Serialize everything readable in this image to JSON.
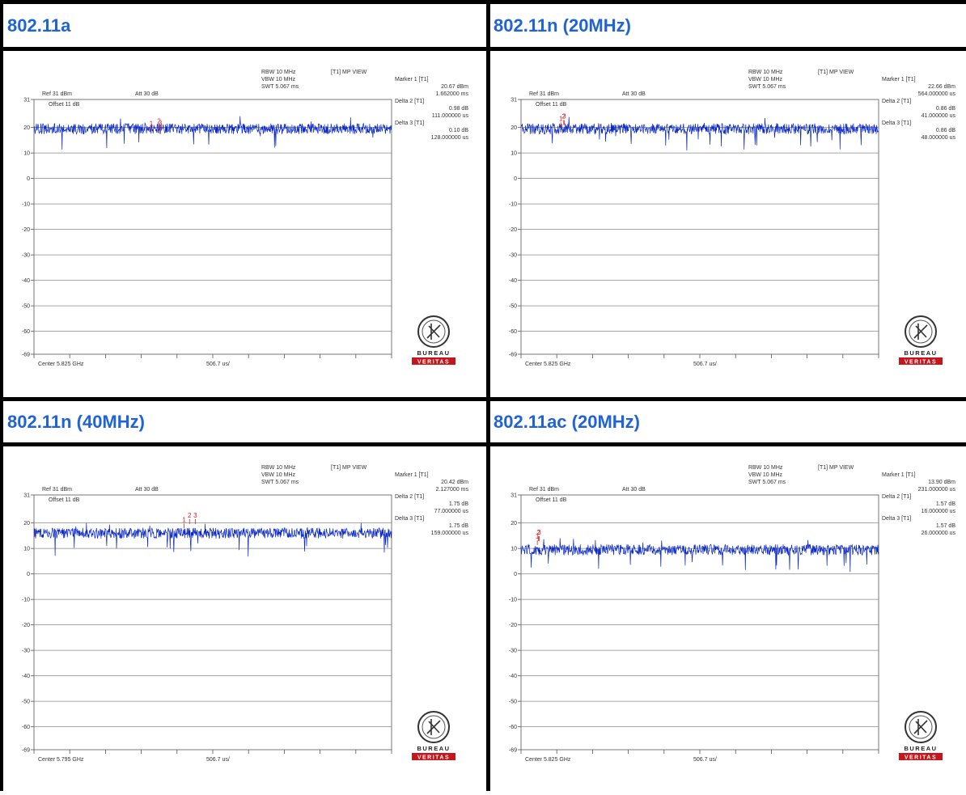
{
  "common": {
    "ref_text": "Ref 31 dBm",
    "att_text": "Att  30 dB",
    "offset_text": "Offset 11 dB",
    "rbw_text": "RBW 10 MHz",
    "vbw_text": "VBW 10 MHz",
    "swt_text": "SWT 5.067 ms",
    "view_text": "[T1] MP VIEW",
    "div_text": "506.7 us/",
    "logo_word1": "BUREAU",
    "logo_word2": "VERITAS"
  },
  "colors": {
    "title": "#1f63d6",
    "trace": "#0a28c8",
    "marker": "#e02020",
    "grid": "#888888",
    "logo_red": "#c4161c"
  },
  "chart_data": [
    {
      "type": "line",
      "title": "802.11a",
      "center_text": "Center 5.825 GHz",
      "yticks": [
        "31",
        "20",
        "10",
        "0",
        "-10",
        "-20",
        "-30",
        "-40",
        "-50",
        "-60",
        "-69"
      ],
      "ylim": [
        -69,
        31
      ],
      "xlim_us": [
        0,
        5067
      ],
      "trace_level_dbm": 19.5,
      "markers": [
        {
          "id": "1",
          "x_us": 1662,
          "y_dbm": 20.67
        },
        {
          "id": "2",
          "x_us": 1773,
          "y_dbm": 21.65
        },
        {
          "id": "3",
          "x_us": 1790,
          "y_dbm": 20.77
        }
      ],
      "readout": [
        {
          "label": "Marker 1 [T1]",
          "lines": [
            "20.67 dBm",
            "1.662000 ms"
          ]
        },
        {
          "label": "Delta 2 [T1]",
          "lines": [
            "0.98 dB",
            "111.000000 us"
          ]
        },
        {
          "label": "Delta 3 [T1]",
          "lines": [
            "0.10 dB",
            "128.000000 us"
          ]
        }
      ]
    },
    {
      "type": "line",
      "title": "802.11n (20MHz)",
      "center_text": "Center 5.825 GHz",
      "yticks": [
        "31",
        "20",
        "10",
        "0",
        "-10",
        "-20",
        "-30",
        "-40",
        "-50",
        "-60",
        "-69"
      ],
      "ylim": [
        -69,
        31
      ],
      "xlim_us": [
        0,
        5067
      ],
      "trace_level_dbm": 19.5,
      "markers": [
        {
          "id": "1",
          "x_us": 564,
          "y_dbm": 22.66
        },
        {
          "id": "2",
          "x_us": 605,
          "y_dbm": 23.52
        },
        {
          "id": "3",
          "x_us": 612,
          "y_dbm": 23.52
        }
      ],
      "readout": [
        {
          "label": "Marker 1 [T1]",
          "lines": [
            "22.66 dBm",
            "564.000000 us"
          ]
        },
        {
          "label": "Delta 2 [T1]",
          "lines": [
            "0.86 dB",
            "41.000000 us"
          ]
        },
        {
          "label": "Delta 3 [T1]",
          "lines": [
            "0.86 dB",
            "48.000000 us"
          ]
        }
      ]
    },
    {
      "type": "line",
      "title": "802.11n (40MHz)",
      "center_text": "Center 5.795 GHz",
      "yticks": [
        "31",
        "20",
        "10",
        "0",
        "-10",
        "-20",
        "-30",
        "-40",
        "-50",
        "-60",
        "-69"
      ],
      "ylim": [
        -69,
        31
      ],
      "xlim_us": [
        0,
        5067
      ],
      "trace_level_dbm": 16.0,
      "markers": [
        {
          "id": "1",
          "x_us": 2127,
          "y_dbm": 20.42
        },
        {
          "id": "2",
          "x_us": 2204,
          "y_dbm": 22.17
        },
        {
          "id": "3",
          "x_us": 2286,
          "y_dbm": 22.17
        }
      ],
      "readout": [
        {
          "label": "Marker 1 [T1]",
          "lines": [
            "20.42 dBm",
            "2.127000 ms"
          ]
        },
        {
          "label": "Delta 2 [T1]",
          "lines": [
            "1.75 dB",
            "77.000000 us"
          ]
        },
        {
          "label": "Delta 3 [T1]",
          "lines": [
            "1.75 dB",
            "159.000000 us"
          ]
        }
      ]
    },
    {
      "type": "line",
      "title": "802.11ac (20MHz)",
      "center_text": "Center 5.825 GHz",
      "yticks": [
        "31",
        "20",
        "10",
        "0",
        "-10",
        "-20",
        "-30",
        "-40",
        "-50",
        "-60",
        "-69"
      ],
      "ylim": [
        -69,
        31
      ],
      "xlim_us": [
        0,
        5067
      ],
      "trace_level_dbm": 9.5,
      "markers": [
        {
          "id": "1",
          "x_us": 231,
          "y_dbm": 13.9
        },
        {
          "id": "2",
          "x_us": 247,
          "y_dbm": 15.47
        },
        {
          "id": "3",
          "x_us": 257,
          "y_dbm": 15.47
        }
      ],
      "readout": [
        {
          "label": "Marker 1 [T1]",
          "lines": [
            "13.90 dBm",
            "231.000000 us"
          ]
        },
        {
          "label": "Delta 2 [T1]",
          "lines": [
            "1.57 dB",
            "16.000000 us"
          ]
        },
        {
          "label": "Delta 3 [T1]",
          "lines": [
            "1.57 dB",
            "26.000000 us"
          ]
        }
      ]
    }
  ]
}
